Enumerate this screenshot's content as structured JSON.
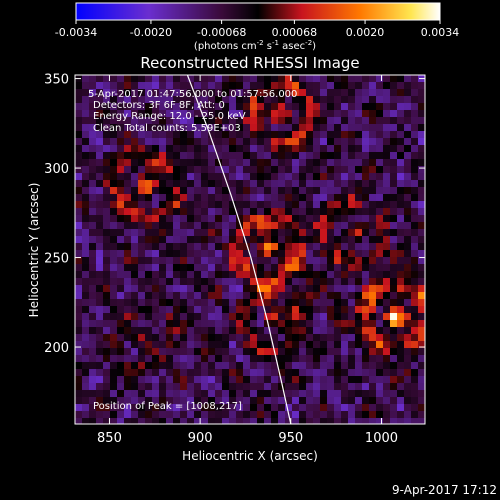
{
  "chart_data": {
    "type": "heatmap",
    "title": "Reconstructed RHESSI Image",
    "xlabel": "Heliocentric X (arcsec)",
    "ylabel": "Heliocentric Y (arcsec)",
    "xlim": [
      831,
      1024
    ],
    "ylim": [
      157,
      352
    ],
    "x_ticks": [
      850,
      900,
      950,
      1000
    ],
    "y_ticks": [
      200,
      250,
      300,
      350
    ],
    "colorbar": {
      "range": [
        -0.0034,
        0.0034
      ],
      "ticks": [
        "-0.0034",
        "-0.0020",
        "-0.00068",
        "0.00068",
        "0.0020",
        "0.0034"
      ],
      "tick_values": [
        -0.0034,
        -0.002,
        -0.00068,
        0.00068,
        0.002,
        0.0034
      ],
      "unit_main": "(photons cm",
      "unit_sup1": "-2",
      "unit_mid": " s",
      "unit_sup2": "-1",
      "unit_end": " asec",
      "unit_sup3": "-2",
      "unit_close": ")",
      "colors": [
        "#0000ff",
        "#6b2ecf",
        "#3a0a3a",
        "#000000",
        "#c8141e",
        "#ff7800",
        "#ffe650",
        "#ffffff"
      ]
    },
    "annotations": [
      "5-Apr-2017 01:47:56.000 to 01:57:56.000",
      "Detectors: 3F 6F 8F, Att: 0",
      "Energy Range: 12.0 - 25.0 keV",
      "Clean    Total counts: 5.59E+03"
    ],
    "peak_text": "Position of Peak = [1008,217]",
    "peak": {
      "x": 1008,
      "y": 217
    },
    "limb_curve": [
      [
        893,
        352
      ],
      [
        905,
        320
      ],
      [
        917,
        285
      ],
      [
        928,
        250
      ],
      [
        937,
        215
      ],
      [
        945,
        180
      ],
      [
        950,
        157
      ]
    ],
    "hot_spots": [
      {
        "x": 870,
        "y": 290,
        "intensity": 0.75
      },
      {
        "x": 937,
        "y": 255,
        "intensity": 0.85
      },
      {
        "x": 940,
        "y": 215,
        "intensity": 0.6
      },
      {
        "x": 1008,
        "y": 217,
        "intensity": 1.0
      },
      {
        "x": 945,
        "y": 330,
        "intensity": 0.7
      },
      {
        "x": 985,
        "y": 265,
        "intensity": 0.5
      },
      {
        "x": 870,
        "y": 205,
        "intensity": 0.35
      }
    ]
  },
  "footer": {
    "timestamp": "9-Apr-2017 17:12"
  }
}
